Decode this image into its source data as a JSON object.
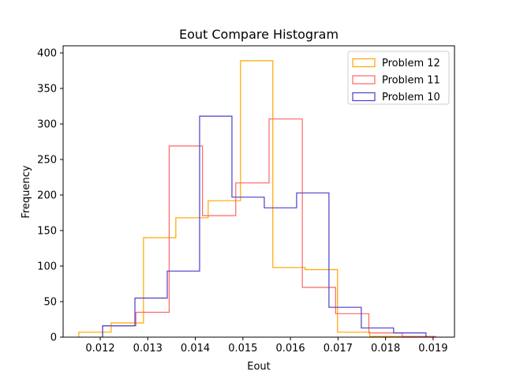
{
  "chart_data": {
    "type": "histogram",
    "title": "Eout Compare Histogram",
    "xlabel": "Eout",
    "ylabel": "Frequency",
    "xlim": [
      0.01122,
      0.01945
    ],
    "ylim": [
      0,
      410
    ],
    "xticks": [
      "0.012",
      "0.013",
      "0.014",
      "0.015",
      "0.016",
      "0.017",
      "0.018",
      "0.019"
    ],
    "yticks": [
      "0",
      "50",
      "100",
      "150",
      "200",
      "250",
      "300",
      "350",
      "400"
    ],
    "grid": false,
    "legend_placement": "top-right",
    "series": [
      {
        "name": "Problem 12",
        "color": "#ffa500",
        "bin_edges": [
          0.01155,
          0.01223,
          0.01291,
          0.01359,
          0.01427,
          0.01495,
          0.01563,
          0.01631,
          0.01699,
          0.01767,
          0.01835,
          0.01903
        ],
        "counts": [
          7,
          20,
          140,
          168,
          192,
          389,
          98,
          95,
          7,
          1,
          0
        ]
      },
      {
        "name": "Problem 11",
        "color": "#ff6666",
        "bin_edges": [
          0.01205,
          0.01275,
          0.01345,
          0.01415,
          0.01485,
          0.01555,
          0.01625,
          0.01695,
          0.01765,
          0.01835,
          0.01905
        ],
        "counts": [
          16,
          35,
          269,
          171,
          217,
          307,
          70,
          33,
          6,
          1
        ]
      },
      {
        "name": "Problem 10",
        "color": "#4a3fcc",
        "bin_edges": [
          0.01205,
          0.01273,
          0.01341,
          0.01409,
          0.01477,
          0.01545,
          0.01613,
          0.01681,
          0.01749,
          0.01817,
          0.01885
        ],
        "counts": [
          16,
          55,
          93,
          311,
          197,
          182,
          203,
          42,
          13,
          6
        ]
      }
    ]
  }
}
